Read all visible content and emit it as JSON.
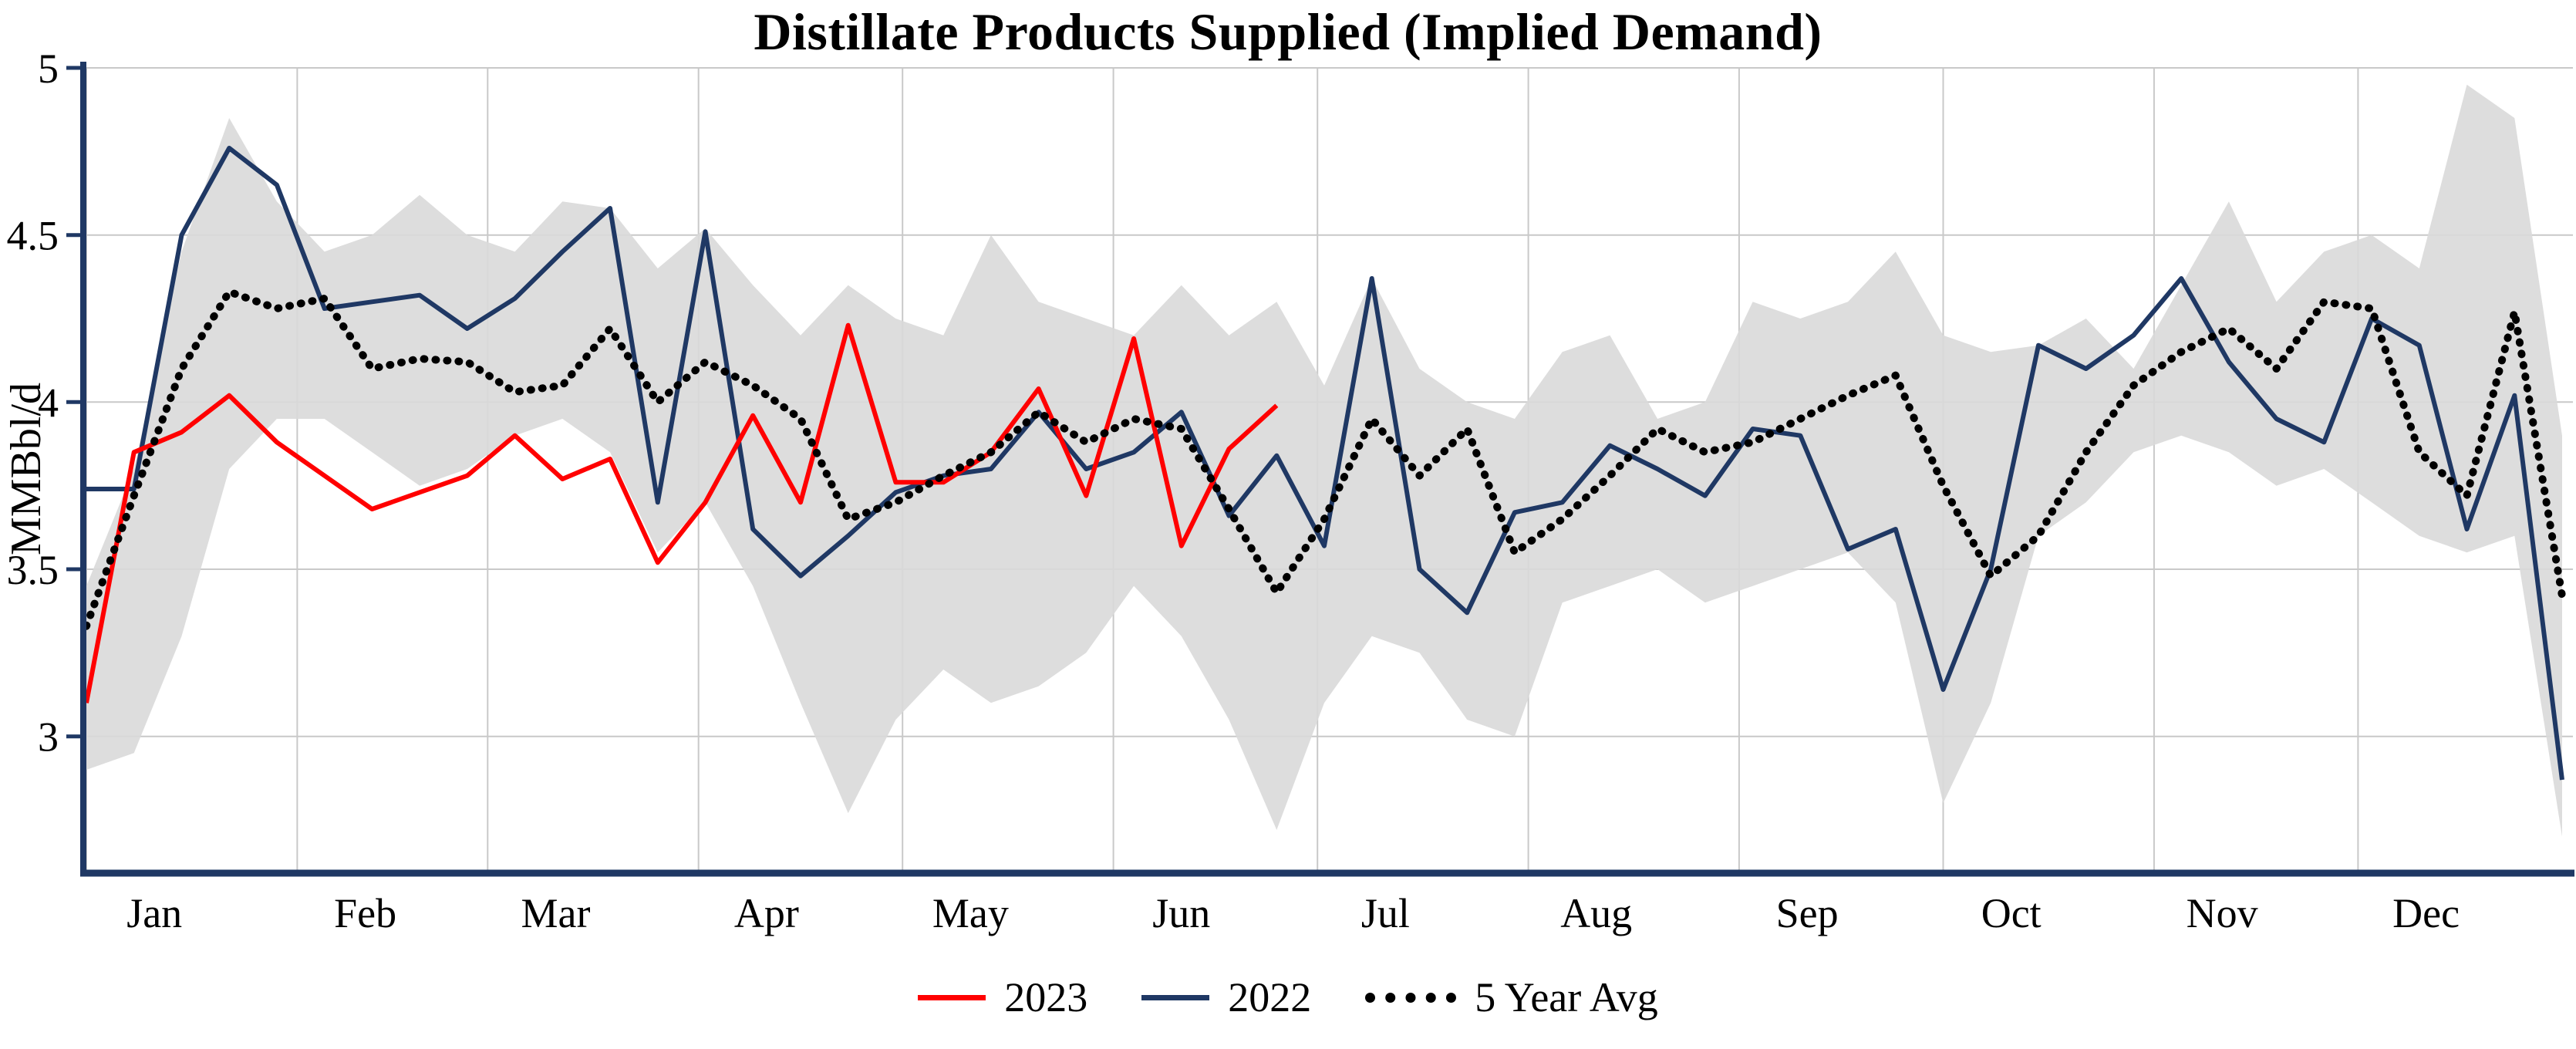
{
  "chart_data": {
    "type": "line",
    "title": "Distillate Products Supplied (Implied Demand)",
    "ylabel": "MMBbl/d",
    "xlabel": "",
    "ylim": [
      2.6,
      5.0
    ],
    "yticks": [
      3,
      3.5,
      4,
      4.5,
      5
    ],
    "months": [
      "Jan",
      "Feb",
      "Mar",
      "Apr",
      "May",
      "Jun",
      "Jul",
      "Aug",
      "Sep",
      "Oct",
      "Nov",
      "Dec"
    ],
    "month_start_days": [
      0,
      31,
      59,
      90,
      120,
      151,
      181,
      212,
      243,
      273,
      304,
      334
    ],
    "grid": true,
    "colors": {
      "grid": "#C9C9C9",
      "axis": "#1F3864",
      "band": "#D9D9D9",
      "background": "#FFFFFF"
    },
    "series": [
      {
        "name": "2023",
        "color": "#FF0000",
        "style": "solid",
        "start_week": 1,
        "values": [
          3.1,
          3.85,
          3.91,
          4.02,
          3.88,
          3.78,
          3.68,
          3.73,
          3.78,
          3.9,
          3.77,
          3.83,
          3.52,
          3.7,
          3.96,
          3.7,
          4.23,
          3.76,
          3.76,
          3.85,
          4.04,
          3.72,
          4.19,
          3.57,
          3.86,
          3.99
        ]
      },
      {
        "name": "2022",
        "color": "#1F3864",
        "style": "solid",
        "start_week": 1,
        "values": [
          3.74,
          3.74,
          4.5,
          4.76,
          4.65,
          4.28,
          4.3,
          4.32,
          4.22,
          4.31,
          4.45,
          4.58,
          3.7,
          4.51,
          3.62,
          3.48,
          3.6,
          3.73,
          3.78,
          3.8,
          3.97,
          3.8,
          3.85,
          3.97,
          3.66,
          3.84,
          3.57,
          4.37,
          3.5,
          3.37,
          3.67,
          3.7,
          3.87,
          3.8,
          3.72,
          3.92,
          3.9,
          3.56,
          3.62,
          3.14,
          3.5,
          4.17,
          4.1,
          4.2,
          4.37,
          4.12,
          3.95,
          3.88,
          4.25,
          4.17,
          3.62,
          4.02,
          2.87
        ]
      },
      {
        "name": "5 Year Avg",
        "color": "#000000",
        "style": "dotted",
        "start_week": 1,
        "values": [
          3.33,
          3.72,
          4.1,
          4.33,
          4.28,
          4.31,
          4.1,
          4.13,
          4.12,
          4.03,
          4.05,
          4.22,
          4.0,
          4.12,
          4.05,
          3.95,
          3.65,
          3.7,
          3.78,
          3.85,
          3.97,
          3.88,
          3.95,
          3.92,
          3.68,
          3.43,
          3.65,
          3.95,
          3.78,
          3.92,
          3.55,
          3.65,
          3.78,
          3.92,
          3.85,
          3.88,
          3.95,
          4.02,
          4.08,
          3.75,
          3.48,
          3.6,
          3.85,
          4.05,
          4.15,
          4.22,
          4.1,
          4.3,
          4.28,
          3.85,
          3.72,
          4.27,
          3.42
        ]
      }
    ],
    "band": {
      "name": "5 Year Range",
      "color": "#D9D9D9",
      "high": [
        3.45,
        3.8,
        4.45,
        4.85,
        4.6,
        4.45,
        4.5,
        4.62,
        4.5,
        4.45,
        4.6,
        4.58,
        4.4,
        4.52,
        4.35,
        4.2,
        4.35,
        4.25,
        4.2,
        4.5,
        4.3,
        4.25,
        4.2,
        4.35,
        4.2,
        4.3,
        4.05,
        4.37,
        4.1,
        4.0,
        3.95,
        4.15,
        4.2,
        3.95,
        4.0,
        4.3,
        4.25,
        4.3,
        4.45,
        4.2,
        4.15,
        4.17,
        4.25,
        4.1,
        4.35,
        4.6,
        4.3,
        4.45,
        4.5,
        4.4,
        4.95,
        4.85,
        3.9
      ],
      "low": [
        2.9,
        2.95,
        3.3,
        3.8,
        3.95,
        3.95,
        3.85,
        3.75,
        3.8,
        3.9,
        3.95,
        3.85,
        3.55,
        3.7,
        3.45,
        3.1,
        2.77,
        3.05,
        3.2,
        3.1,
        3.15,
        3.25,
        3.45,
        3.3,
        3.05,
        2.72,
        3.1,
        3.3,
        3.25,
        3.05,
        3.0,
        3.4,
        3.45,
        3.5,
        3.4,
        3.45,
        3.5,
        3.55,
        3.4,
        2.8,
        3.1,
        3.6,
        3.7,
        3.85,
        3.9,
        3.85,
        3.75,
        3.8,
        3.7,
        3.6,
        3.55,
        3.6,
        2.7
      ]
    },
    "legend": {
      "position": "bottom-center",
      "entries": [
        "2023",
        "2022",
        "5 Year Avg"
      ]
    }
  }
}
